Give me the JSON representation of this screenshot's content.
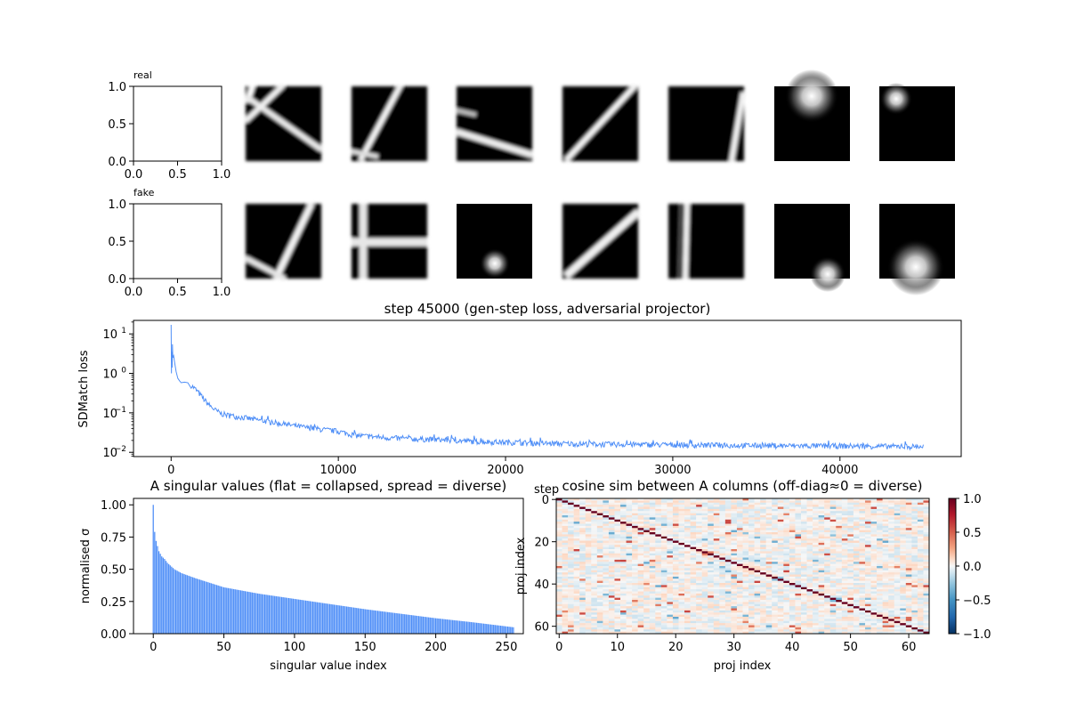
{
  "chart_data": [
    {
      "type": "image-grid",
      "rows": [
        {
          "label": "real",
          "axes": {
            "xlim": [
              0.0,
              1.0
            ],
            "ylim": [
              0.0,
              1.0
            ],
            "xticks": [
              "0.0",
              "0.5",
              "1.0"
            ],
            "yticks": [
              "0.0",
              "0.5",
              "1.0"
            ]
          },
          "tiles": [
            {
              "kind": "lines",
              "desc": "two crossing bright lines"
            },
            {
              "kind": "lines",
              "desc": "steep diagonal line"
            },
            {
              "kind": "lines",
              "desc": "shallow diagonal band"
            },
            {
              "kind": "lines",
              "desc": "diagonal line"
            },
            {
              "kind": "lines",
              "desc": "near-vertical line at right"
            },
            {
              "kind": "blob",
              "desc": "large soft blob top"
            },
            {
              "kind": "blob",
              "desc": "small blob top-left"
            }
          ]
        },
        {
          "label": "fake",
          "axes": {
            "xlim": [
              0.0,
              1.0
            ],
            "ylim": [
              0.0,
              1.0
            ],
            "xticks": [
              "0.0",
              "0.5",
              "1.0"
            ],
            "yticks": [
              "0.0",
              "0.5",
              "1.0"
            ]
          },
          "tiles": [
            {
              "kind": "lines",
              "desc": "two crossing lines"
            },
            {
              "kind": "lines",
              "desc": "cross of vertical and horizontal bands"
            },
            {
              "kind": "blob",
              "desc": "blob lower middle"
            },
            {
              "kind": "lines",
              "desc": "diagonal line"
            },
            {
              "kind": "lines",
              "desc": "vertical line left"
            },
            {
              "kind": "blob",
              "desc": "blob bottom"
            },
            {
              "kind": "blob",
              "desc": "large blob bottom"
            }
          ]
        }
      ]
    },
    {
      "type": "line",
      "title": "step 45000  (gen-step loss, adversarial projector)",
      "xlabel": "",
      "ylabel": "SDMatch loss",
      "yscale": "log",
      "xlim": [
        -2250,
        47250
      ],
      "ylim": [
        0.0078,
        22
      ],
      "xticks": [
        0,
        10000,
        20000,
        30000,
        40000
      ],
      "xtick_labels": [
        "0",
        "10000",
        "20000",
        "30000",
        "40000"
      ],
      "yticks": [
        0.01,
        0.1,
        1,
        10
      ],
      "ytick_labels": [
        "10",
        "10",
        "10",
        "10"
      ],
      "ytick_exponents": [
        "−2",
        "−1",
        "0",
        "1"
      ],
      "color": "#4e8ef7",
      "series": [
        {
          "x": [
            0,
            20,
            40,
            60,
            80,
            100,
            150,
            200,
            300,
            400,
            500,
            600,
            800,
            1000,
            1200,
            1500,
            1800,
            2000,
            2300,
            2600,
            3000,
            3500,
            4000,
            5000,
            6000,
            7000,
            8000,
            9000,
            10000,
            11000,
            12000,
            14000,
            16000,
            18000,
            20000,
            22000,
            24000,
            26000,
            28000,
            30000,
            32000,
            34000,
            36000,
            38000,
            40000,
            42000,
            44000,
            45000
          ],
          "y": [
            17,
            1.0,
            3.5,
            1.4,
            5.5,
            2.5,
            2.8,
            2.0,
            1.1,
            0.75,
            0.65,
            0.58,
            0.6,
            0.58,
            0.5,
            0.38,
            0.27,
            0.21,
            0.155,
            0.12,
            0.095,
            0.085,
            0.08,
            0.068,
            0.058,
            0.05,
            0.043,
            0.038,
            0.034,
            0.027,
            0.025,
            0.022,
            0.021,
            0.019,
            0.018,
            0.017,
            0.0165,
            0.016,
            0.0158,
            0.0155,
            0.0152,
            0.015,
            0.0148,
            0.0146,
            0.0145,
            0.0143,
            0.014,
            0.014
          ]
        }
      ],
      "grid": false
    },
    {
      "type": "bar",
      "title": "A singular values  (flat = collapsed, spread = diverse)",
      "xlabel": "singular value index",
      "ylabel": "normalised σ",
      "xlim": [
        -14,
        262
      ],
      "ylim": [
        0.0,
        1.05
      ],
      "xticks": [
        0,
        50,
        100,
        150,
        200,
        250
      ],
      "yticks": [
        "0.00",
        "0.25",
        "0.50",
        "0.75",
        "1.00"
      ],
      "color": "#4e8ef7",
      "n_bars": 256,
      "key_values": {
        "0": 1.0,
        "1": 0.79,
        "2": 0.72,
        "3": 0.68,
        "4": 0.64,
        "6": 0.6,
        "8": 0.58,
        "10": 0.55,
        "15": 0.5,
        "20": 0.47,
        "30": 0.43,
        "50": 0.36,
        "75": 0.31,
        "100": 0.27,
        "125": 0.23,
        "150": 0.19,
        "175": 0.155,
        "200": 0.12,
        "225": 0.09,
        "255": 0.05
      }
    },
    {
      "type": "heatmap",
      "title": "cosine sim between A columns  (off-diag≈0 = diverse)",
      "xlabel": "proj index",
      "ylabel": "proj index",
      "size": 64,
      "xticks": [
        0,
        10,
        20,
        30,
        40,
        50,
        60
      ],
      "yticks": [
        0,
        20,
        40,
        60
      ],
      "colormap": "RdBu_r",
      "vmin": -1.0,
      "vmax": 1.0,
      "diagonal": 1.0,
      "offdiag_range": [
        -0.4,
        0.6
      ],
      "colorbar_ticks": [
        "1.0",
        "0.5",
        "0.0",
        "−0.5",
        "−1.0"
      ],
      "step_label": "step"
    }
  ]
}
